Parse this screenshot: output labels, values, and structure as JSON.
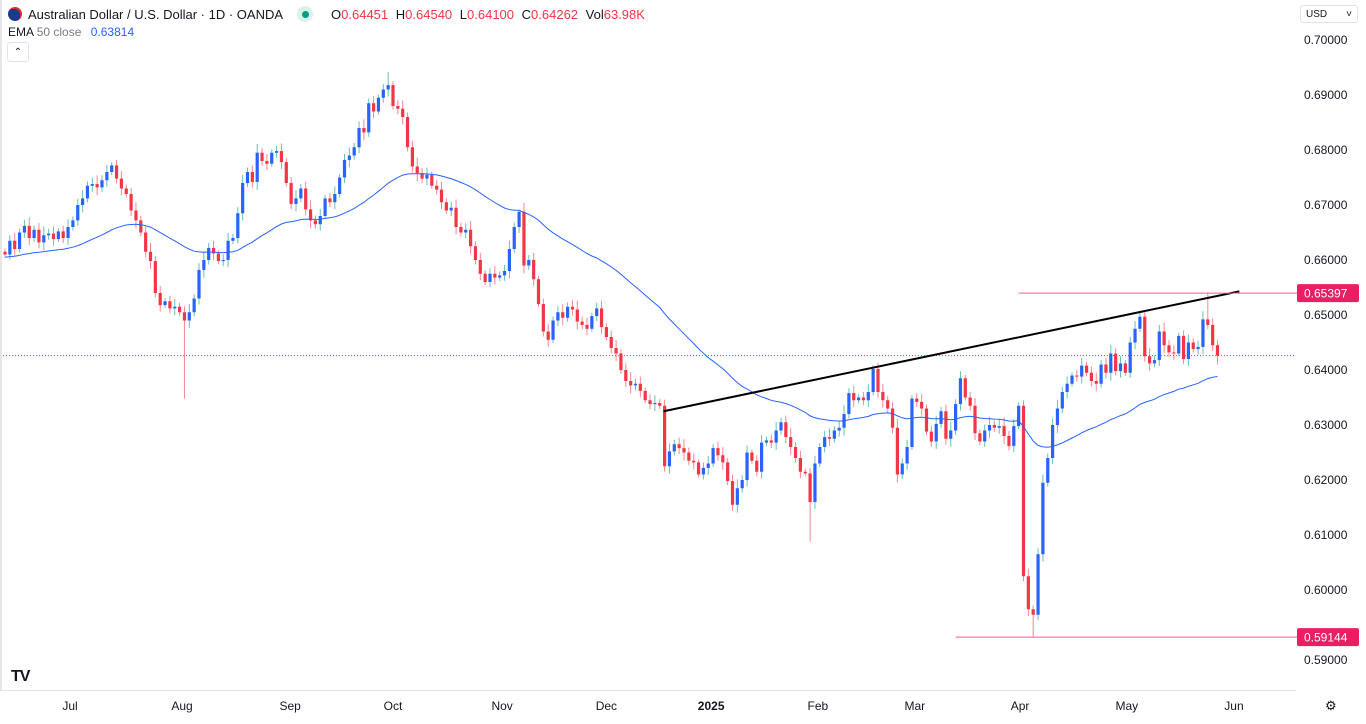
{
  "header": {
    "symbol_title": "Australian Dollar / U.S. Dollar · 1D · OANDA",
    "open_label": "O",
    "open": "0.64451",
    "high_label": "H",
    "high": "0.64540",
    "low_label": "L",
    "low": "0.64100",
    "close_label": "C",
    "close": "0.64262",
    "vol_label": "Vol",
    "vol": "63.98K",
    "market_status": "open"
  },
  "indicator": {
    "name": "EMA",
    "params": "50 close",
    "value": "0.63814",
    "color": "#2962ff"
  },
  "currency_select": {
    "value": "USD"
  },
  "logo": "TV",
  "colors": {
    "up_body": "#2962ff",
    "up_wick": "#26a69a",
    "down": "#f23645",
    "level": "#f06292",
    "trendline": "#000000",
    "price_line": "#f23645"
  },
  "chart_data": {
    "type": "candlestick",
    "ylim": [
      0.585,
      0.705
    ],
    "y_ticks": [
      "0.70000",
      "0.69000",
      "0.68000",
      "0.67000",
      "0.66000",
      "0.65000",
      "0.64000",
      "0.63000",
      "0.62000",
      "0.61000",
      "0.60000",
      "0.59000"
    ],
    "x_ticks": [
      {
        "label": "Jul",
        "bar": 13.4,
        "bold": false
      },
      {
        "label": "Aug",
        "bar": 36.5,
        "bold": false
      },
      {
        "label": "Sep",
        "bar": 58.8,
        "bold": false
      },
      {
        "label": "Oct",
        "bar": 80,
        "bold": false
      },
      {
        "label": "Nov",
        "bar": 102.5,
        "bold": false
      },
      {
        "label": "Dec",
        "bar": 124,
        "bold": false
      },
      {
        "label": "2025",
        "bar": 145.6,
        "bold": true
      },
      {
        "label": "Feb",
        "bar": 167.6,
        "bold": false
      },
      {
        "label": "Mar",
        "bar": 187.6,
        "bold": false
      },
      {
        "label": "Apr",
        "bar": 209.3,
        "bold": false
      },
      {
        "label": "May",
        "bar": 231.3,
        "bold": false
      },
      {
        "label": "Jun",
        "bar": 253.4,
        "bold": false
      }
    ],
    "close": [
      0.661,
      0.6635,
      0.662,
      0.665,
      0.6662,
      0.664,
      0.6655,
      0.6632,
      0.6645,
      0.6648,
      0.6638,
      0.6652,
      0.664,
      0.666,
      0.6672,
      0.67,
      0.6712,
      0.6735,
      0.6738,
      0.6732,
      0.6745,
      0.676,
      0.6772,
      0.6748,
      0.673,
      0.672,
      0.669,
      0.6672,
      0.665,
      0.6615,
      0.6598,
      0.654,
      0.6518,
      0.6525,
      0.6512,
      0.6515,
      0.6505,
      0.649,
      0.6505,
      0.653,
      0.6582,
      0.66,
      0.6622,
      0.6612,
      0.6598,
      0.66,
      0.6635,
      0.664,
      0.6685,
      0.674,
      0.676,
      0.6742,
      0.6795,
      0.678,
      0.6775,
      0.6795,
      0.6798,
      0.6778,
      0.674,
      0.6702,
      0.6712,
      0.673,
      0.6692,
      0.6672,
      0.6665,
      0.668,
      0.6712,
      0.6705,
      0.672,
      0.675,
      0.6782,
      0.679,
      0.6805,
      0.684,
      0.6832,
      0.6885,
      0.687,
      0.6895,
      0.691,
      0.6918,
      0.688,
      0.6875,
      0.686,
      0.6805,
      0.677,
      0.6758,
      0.6748,
      0.6755,
      0.6735,
      0.6728,
      0.6705,
      0.669,
      0.6695,
      0.666,
      0.665,
      0.6655,
      0.6625,
      0.66,
      0.6575,
      0.656,
      0.6575,
      0.6568,
      0.6572,
      0.658,
      0.662,
      0.666,
      0.6688,
      0.659,
      0.66,
      0.6565,
      0.652,
      0.647,
      0.6455,
      0.649,
      0.6505,
      0.6495,
      0.6515,
      0.651,
      0.6488,
      0.6482,
      0.6475,
      0.6498,
      0.6512,
      0.6478,
      0.646,
      0.644,
      0.643,
      0.64,
      0.638,
      0.6372,
      0.6375,
      0.6362,
      0.6345,
      0.6338,
      0.634,
      0.6335,
      0.6225,
      0.6252,
      0.6265,
      0.6258,
      0.625,
      0.6235,
      0.6232,
      0.621,
      0.6222,
      0.623,
      0.6258,
      0.6245,
      0.6232,
      0.6198,
      0.6155,
      0.6185,
      0.62,
      0.625,
      0.6235,
      0.6215,
      0.6268,
      0.6272,
      0.6268,
      0.629,
      0.6305,
      0.6278,
      0.626,
      0.624,
      0.6215,
      0.6212,
      0.616,
      0.623,
      0.626,
      0.6278,
      0.6275,
      0.629,
      0.6295,
      0.632,
      0.6358,
      0.6345,
      0.635,
      0.6345,
      0.636,
      0.6402,
      0.636,
      0.6345,
      0.633,
      0.6295,
      0.621,
      0.623,
      0.626,
      0.6348,
      0.6342,
      0.633,
      0.6288,
      0.627,
      0.6302,
      0.6325,
      0.6275,
      0.629,
      0.6338,
      0.6385,
      0.635,
      0.6335,
      0.6285,
      0.627,
      0.629,
      0.63,
      0.6295,
      0.6298,
      0.628,
      0.6262,
      0.6298,
      0.6335,
      0.6025,
      0.5965,
      0.5955,
      0.6065,
      0.6195,
      0.624,
      0.63,
      0.633,
      0.636,
      0.6375,
      0.639,
      0.6388,
      0.6408,
      0.6395,
      0.638,
      0.6375,
      0.641,
      0.6395,
      0.643,
      0.6398,
      0.6412,
      0.6395,
      0.645,
      0.6475,
      0.6497,
      0.6425,
      0.6412,
      0.6418,
      0.647,
      0.6445,
      0.6432,
      0.643,
      0.6462,
      0.642,
      0.645,
      0.6438,
      0.6442,
      0.6492,
      0.6482,
      0.6445,
      0.6426
    ],
    "notable_extremes": [
      {
        "bar": 37,
        "low": 0.6348
      },
      {
        "bar": 79,
        "high": 0.6942
      },
      {
        "bar": 106,
        "high": 0.6688
      },
      {
        "bar": 166,
        "low": 0.6088
      },
      {
        "bar": 212,
        "low": 0.5914
      },
      {
        "bar": 248,
        "high": 0.654
      },
      {
        "bar": 250,
        "high": 0.6454,
        "low": 0.641
      }
    ],
    "ema_period": 50,
    "trendline": {
      "from": {
        "bar": 135.8,
        "price": 0.6325
      },
      "to": {
        "bar": 254.5,
        "price": 0.6543
      }
    },
    "levels": [
      {
        "label": "0.65397",
        "price": 0.65397,
        "from_bar": 209
      },
      {
        "label": "0.59144",
        "price": 0.59144,
        "from_bar": 196
      }
    ],
    "last_price": 0.64262
  }
}
